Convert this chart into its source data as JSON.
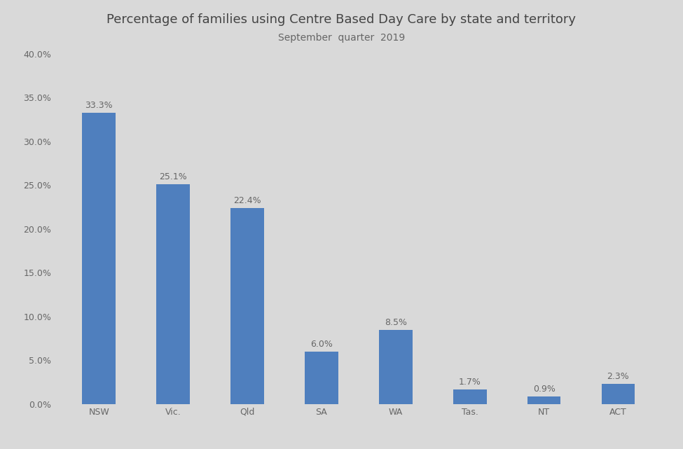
{
  "title": "Percentage of families using Centre Based Day Care by state and territory",
  "subtitle": "September  quarter  2019",
  "categories": [
    "NSW",
    "Vic.",
    "Qld",
    "SA",
    "WA",
    "Tas.",
    "NT",
    "ACT"
  ],
  "values": [
    33.3,
    25.1,
    22.4,
    6.0,
    8.5,
    1.7,
    0.9,
    2.3
  ],
  "bar_color": "#4f7fbe",
  "background_color": "#d9d9d9",
  "ylim": [
    0,
    40
  ],
  "yticks": [
    0,
    5,
    10,
    15,
    20,
    25,
    30,
    35,
    40
  ],
  "title_fontsize": 13,
  "subtitle_fontsize": 10,
  "label_fontsize": 9,
  "tick_fontsize": 9,
  "bar_width": 0.45
}
